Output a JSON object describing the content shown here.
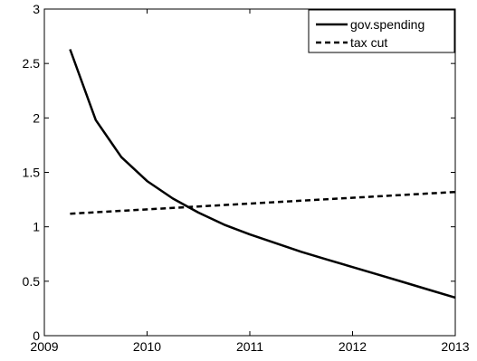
{
  "chart_data": {
    "type": "line",
    "title": "",
    "xlabel": "",
    "ylabel": "",
    "xlim": [
      2009,
      2013
    ],
    "ylim": [
      0,
      3
    ],
    "xticks": [
      "2009",
      "2010",
      "2011",
      "2012",
      "2013"
    ],
    "yticks": [
      "0",
      "0.5",
      "1",
      "1.5",
      "2",
      "2.5",
      "3"
    ],
    "grid": false,
    "legend_position": "top-right",
    "series": [
      {
        "name": "gov.spending",
        "style": "solid",
        "x": [
          2009.25,
          2009.5,
          2009.75,
          2010.0,
          2010.25,
          2010.5,
          2010.75,
          2011.0,
          2011.25,
          2011.5,
          2011.75,
          2012.0,
          2012.25,
          2012.5,
          2012.75,
          2013.0
        ],
        "y": [
          2.63,
          1.98,
          1.64,
          1.42,
          1.26,
          1.13,
          1.02,
          0.93,
          0.85,
          0.77,
          0.7,
          0.63,
          0.56,
          0.49,
          0.42,
          0.35
        ]
      },
      {
        "name": "tax cut",
        "style": "dashed",
        "x": [
          2009.25,
          2013.0
        ],
        "y": [
          1.12,
          1.32
        ]
      }
    ],
    "colors": {
      "line": "#000000"
    }
  }
}
